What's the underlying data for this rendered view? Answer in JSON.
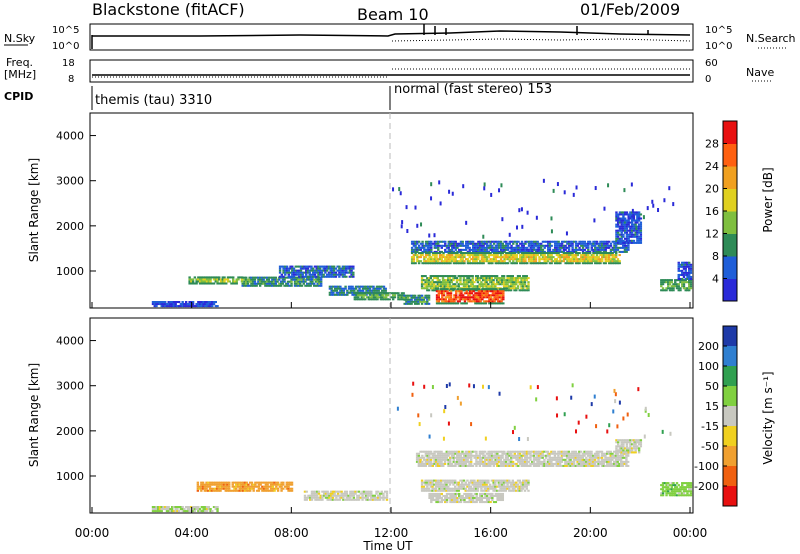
{
  "header": {
    "station": "Blackstone (fitACF)",
    "beam": "Beam 10",
    "date": "01/Feb/2009"
  },
  "panels": {
    "nsky_label": "N.Sky",
    "nsky_ticks": [
      "10^5",
      "10^0"
    ],
    "nsearch_label": "N.Search",
    "nsearch_ticks": [
      "10^5",
      "10^0"
    ],
    "freq_label_1": "Freq.",
    "freq_label_2": "[MHz]",
    "freq_ticks": [
      "18",
      "8"
    ],
    "nave_label": "Nave",
    "nave_ticks": [
      "60",
      "0"
    ],
    "cpid_label": "CPID",
    "cpid_segments": [
      {
        "start_ut": 0.0,
        "label": "themis (tau) 3310"
      },
      {
        "start_ut": 12.0,
        "label": "normal (fast stereo) 153"
      }
    ]
  },
  "chart_data": [
    {
      "type": "heatmap",
      "name": "power",
      "xlabel": "",
      "ylabel": "Slant Range [km]",
      "xlim": [
        0,
        24
      ],
      "ylim": [
        180,
        4500
      ],
      "yticks": [
        1000,
        2000,
        3000,
        4000
      ],
      "colorbar": {
        "label": "Power [dB]",
        "ticks": [
          4,
          8,
          12,
          16,
          20,
          24,
          28
        ],
        "range": [
          0,
          32
        ],
        "colors": [
          "#2a2ad8",
          "#1f5ed8",
          "#2e8b57",
          "#7fbf3f",
          "#e0d020",
          "#f0a020",
          "#ff6010",
          "#e81010"
        ]
      },
      "regions": [
        {
          "t0": 2.4,
          "t1": 5.0,
          "r0": 200,
          "r1": 320,
          "v": 4
        },
        {
          "t0": 3.8,
          "t1": 6.0,
          "r0": 700,
          "r1": 860,
          "v": 14
        },
        {
          "t0": 6.0,
          "t1": 9.2,
          "r0": 650,
          "r1": 850,
          "v": 10
        },
        {
          "t0": 7.5,
          "t1": 10.5,
          "r0": 850,
          "r1": 1100,
          "v": 6
        },
        {
          "t0": 9.5,
          "t1": 11.8,
          "r0": 450,
          "r1": 650,
          "v": 8
        },
        {
          "t0": 10.5,
          "t1": 12.5,
          "r0": 350,
          "r1": 520,
          "v": 12
        },
        {
          "t0": 12.8,
          "t1": 21.5,
          "r0": 1400,
          "r1": 1650,
          "v": 6
        },
        {
          "t0": 12.8,
          "t1": 21.2,
          "r0": 1150,
          "r1": 1400,
          "v": 18
        },
        {
          "t0": 13.2,
          "t1": 17.5,
          "r0": 550,
          "r1": 900,
          "v": 14
        },
        {
          "t0": 13.8,
          "t1": 16.5,
          "r0": 260,
          "r1": 600,
          "v": 27
        },
        {
          "t0": 12.5,
          "t1": 13.5,
          "r0": 250,
          "r1": 450,
          "v": 10
        },
        {
          "t0": 21.0,
          "t1": 22.0,
          "r0": 1600,
          "r1": 2300,
          "v": 5
        },
        {
          "t0": 22.8,
          "t1": 24.0,
          "r0": 550,
          "r1": 800,
          "v": 12
        },
        {
          "t0": 23.5,
          "t1": 24.0,
          "r0": 800,
          "r1": 1200,
          "v": 5
        }
      ]
    },
    {
      "type": "heatmap",
      "name": "velocity",
      "xlabel": "Time UT",
      "ylabel": "Slant Range [km]",
      "xlim": [
        0,
        24
      ],
      "ylim": [
        180,
        4500
      ],
      "yticks": [
        1000,
        2000,
        3000,
        4000
      ],
      "xticks": [
        "00:00",
        "04:00",
        "08:00",
        "12:00",
        "16:00",
        "20:00",
        "00:00"
      ],
      "colorbar": {
        "label": "Velocity [m s⁻¹]",
        "ticks": [
          200,
          100,
          50,
          15,
          -15,
          -50,
          -100,
          -200
        ],
        "colors": [
          "#1e3aa8",
          "#2f7fd0",
          "#30a050",
          "#80d040",
          "#c8c8c0",
          "#f0d020",
          "#f0a030",
          "#f06010",
          "#e81010"
        ]
      },
      "regions": [
        {
          "t0": 2.4,
          "t1": 5.0,
          "r0": 200,
          "r1": 320,
          "v": "low"
        },
        {
          "t0": 4.2,
          "t1": 8.0,
          "r0": 650,
          "r1": 850,
          "v": "orange"
        },
        {
          "t0": 8.5,
          "t1": 11.8,
          "r0": 450,
          "r1": 650,
          "v": "gray"
        },
        {
          "t0": 13.0,
          "t1": 21.5,
          "r0": 1200,
          "r1": 1550,
          "v": "gray"
        },
        {
          "t0": 13.2,
          "t1": 17.5,
          "r0": 650,
          "r1": 900,
          "v": "gray"
        },
        {
          "t0": 13.5,
          "t1": 16.5,
          "r0": 400,
          "r1": 600,
          "v": "gray"
        },
        {
          "t0": 21.0,
          "t1": 22.0,
          "r0": 1500,
          "r1": 1800,
          "v": "gray"
        },
        {
          "t0": 22.8,
          "t1": 24.0,
          "r0": 550,
          "r1": 850,
          "v": "green"
        }
      ]
    }
  ]
}
